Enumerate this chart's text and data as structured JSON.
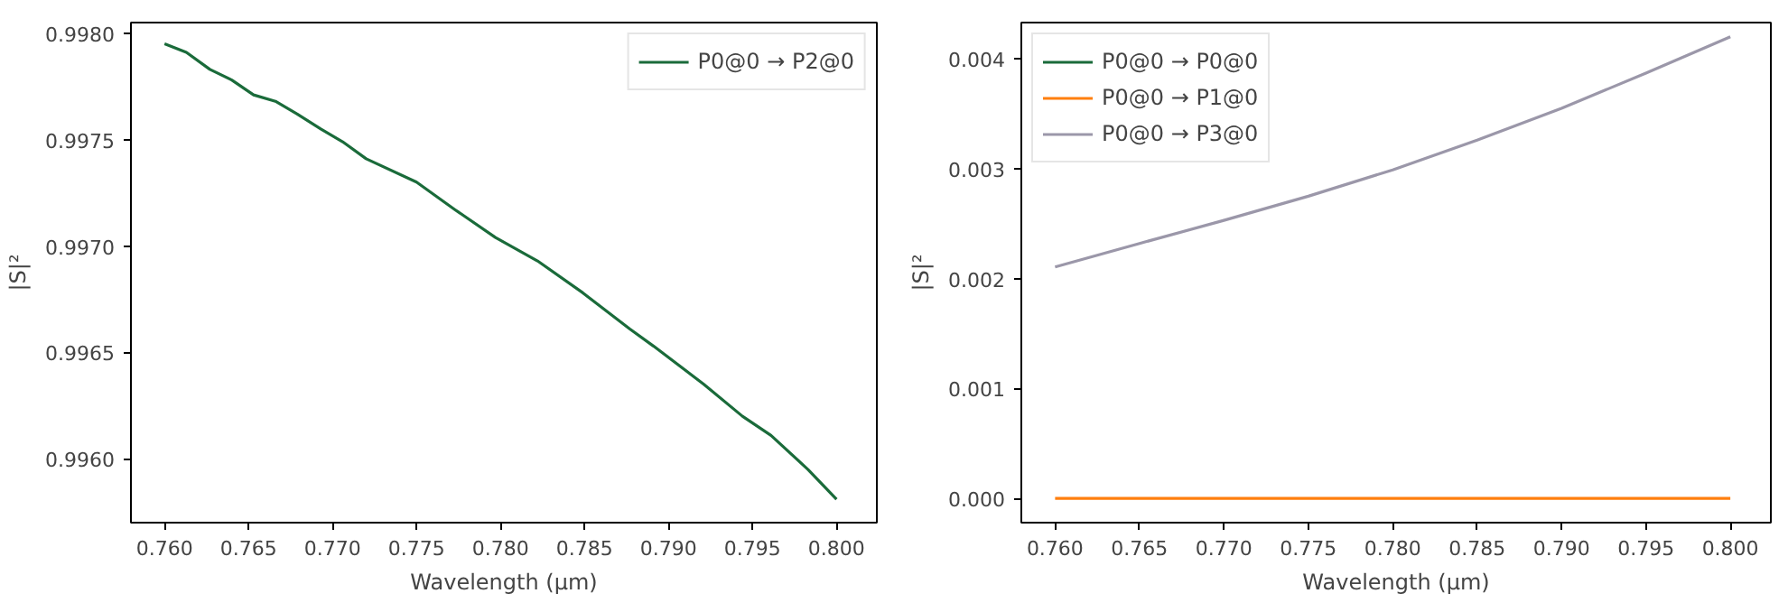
{
  "chart_data": [
    {
      "type": "line",
      "xlabel": "Wavelength (µm)",
      "ylabel": "|S|²",
      "legend": "top right",
      "grid": false,
      "xlim": [
        0.758,
        0.8024
      ],
      "ylim": [
        0.9957,
        0.99805
      ],
      "xticks": [
        {
          "value": 0.76,
          "label": "0.760"
        },
        {
          "value": 0.765,
          "label": "0.765"
        },
        {
          "value": 0.77,
          "label": "0.770"
        },
        {
          "value": 0.775,
          "label": "0.775"
        },
        {
          "value": 0.78,
          "label": "0.780"
        },
        {
          "value": 0.785,
          "label": "0.785"
        },
        {
          "value": 0.79,
          "label": "0.790"
        },
        {
          "value": 0.795,
          "label": "0.795"
        },
        {
          "value": 0.8,
          "label": "0.800"
        }
      ],
      "yticks": [
        {
          "value": 0.996,
          "label": "0.9960"
        },
        {
          "value": 0.9965,
          "label": "0.9965"
        },
        {
          "value": 0.997,
          "label": "0.9970"
        },
        {
          "value": 0.9975,
          "label": "0.9975"
        },
        {
          "value": 0.998,
          "label": "0.9980"
        }
      ],
      "series": [
        {
          "name": "P0@0 → P2@0",
          "color": "#1a6b3a",
          "x": [
            0.76,
            0.7613,
            0.7627,
            0.764,
            0.7653,
            0.7666,
            0.7679,
            0.7693,
            0.7706,
            0.772,
            0.775,
            0.7773,
            0.7797,
            0.7822,
            0.7849,
            0.7877,
            0.7891,
            0.7921,
            0.7944,
            0.7961,
            0.7983,
            0.8
          ],
          "values": [
            0.99795,
            0.99791,
            0.99783,
            0.99778,
            0.99771,
            0.99768,
            0.99762,
            0.99755,
            0.99749,
            0.99741,
            0.9973,
            0.99717,
            0.99704,
            0.99693,
            0.99678,
            0.99661,
            0.99653,
            0.99635,
            0.9962,
            0.99611,
            0.99595,
            0.99581
          ]
        }
      ]
    },
    {
      "type": "line",
      "xlabel": "Wavelength (µm)",
      "ylabel": "|S|²",
      "legend": "top left",
      "grid": false,
      "xlim": [
        0.758,
        0.8024
      ],
      "ylim": [
        -0.00022,
        0.00433
      ],
      "xticks": [
        {
          "value": 0.76,
          "label": "0.760"
        },
        {
          "value": 0.765,
          "label": "0.765"
        },
        {
          "value": 0.77,
          "label": "0.770"
        },
        {
          "value": 0.775,
          "label": "0.775"
        },
        {
          "value": 0.78,
          "label": "0.780"
        },
        {
          "value": 0.785,
          "label": "0.785"
        },
        {
          "value": 0.79,
          "label": "0.790"
        },
        {
          "value": 0.795,
          "label": "0.795"
        },
        {
          "value": 0.8,
          "label": "0.800"
        }
      ],
      "yticks": [
        {
          "value": 0,
          "label": "0.000"
        },
        {
          "value": 0.001,
          "label": "0.001"
        },
        {
          "value": 0.002,
          "label": "0.002"
        },
        {
          "value": 0.003,
          "label": "0.003"
        },
        {
          "value": 0.004,
          "label": "0.004"
        }
      ],
      "x": [
        0.76,
        0.765,
        0.77,
        0.775,
        0.78,
        0.785,
        0.79,
        0.795,
        0.8
      ],
      "series": [
        {
          "name": "P0@0 → P0@0",
          "color": "#1a6b3a",
          "values": [
            null,
            null,
            null,
            null,
            null,
            null,
            null,
            null,
            null
          ]
        },
        {
          "name": "P0@0 → P1@0",
          "color": "#ff7f0e",
          "values": [
            0,
            0,
            0,
            0,
            0,
            0,
            0,
            0,
            0
          ]
        },
        {
          "name": "P0@0 → P3@0",
          "color": "#9b97a9",
          "values": [
            0.002107,
            0.00232,
            0.00253,
            0.00275,
            0.00299,
            0.00326,
            0.00355,
            0.00387,
            0.0042
          ]
        }
      ]
    }
  ]
}
